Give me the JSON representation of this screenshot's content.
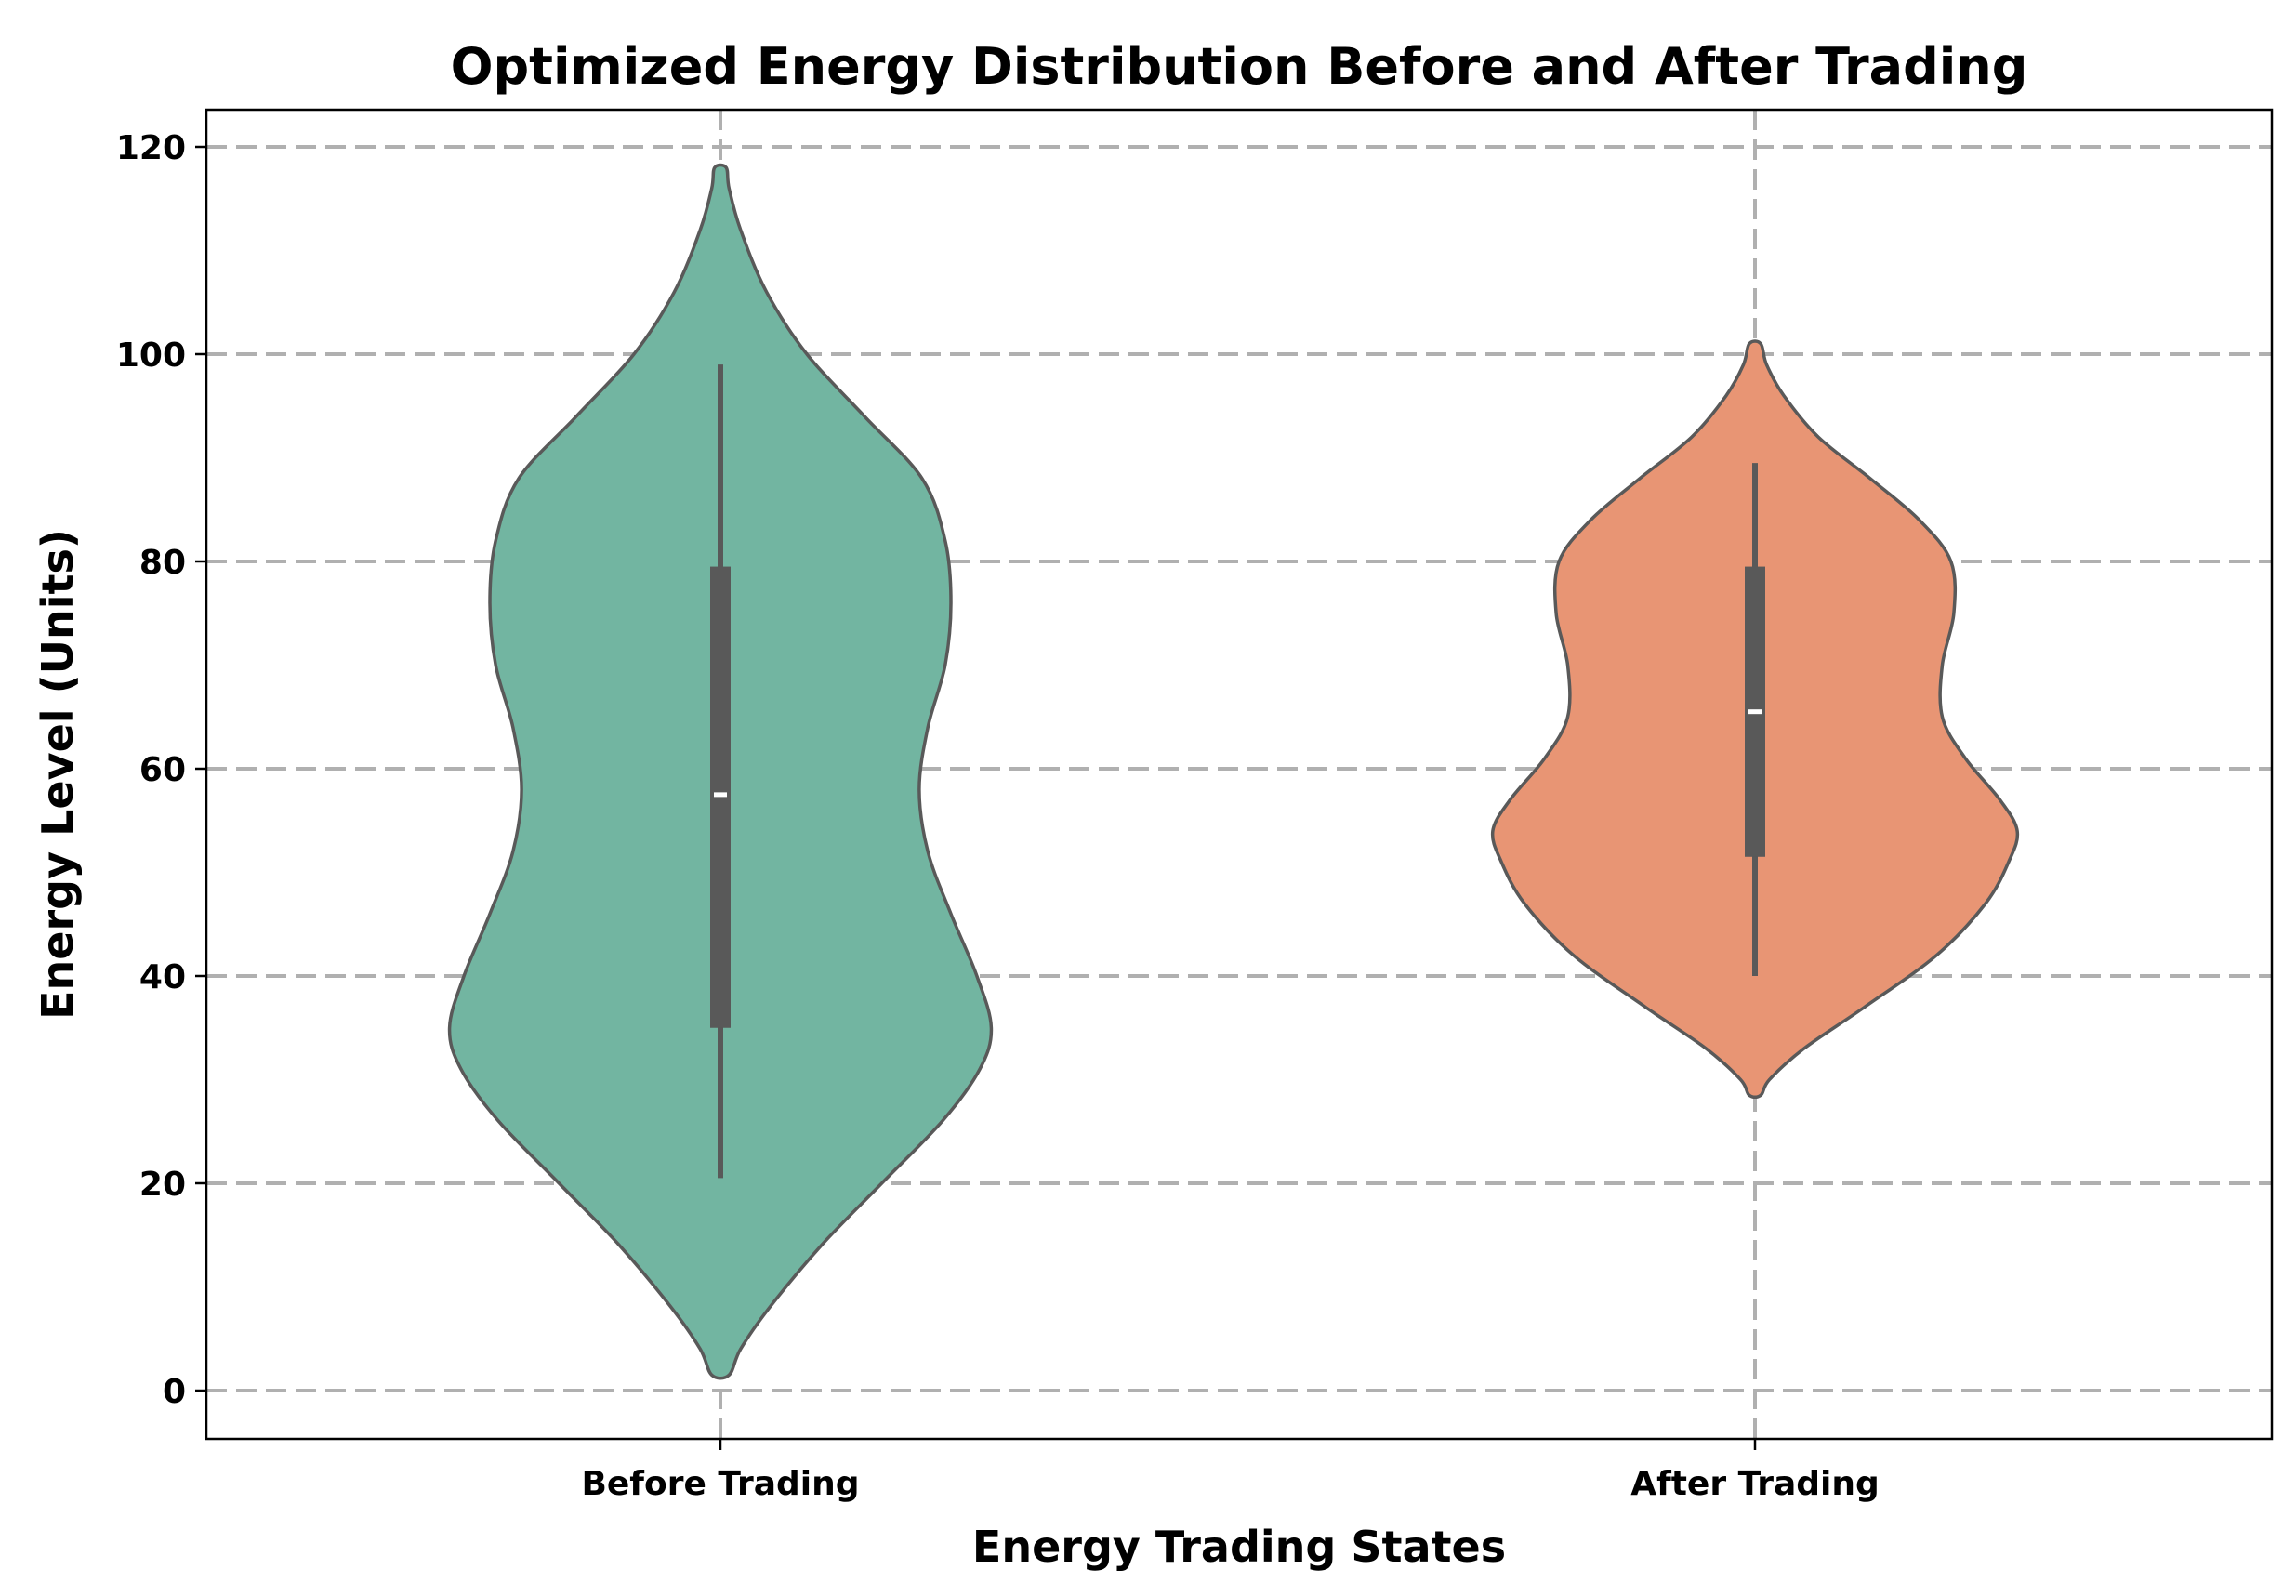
{
  "chart_data": {
    "type": "violin",
    "title": "Optimized Energy Distribution Before and After Trading",
    "xlabel": "Energy Trading States",
    "ylabel": "Energy Level (Units)",
    "categories": [
      "Before Trading",
      "After Trading"
    ],
    "ylim": [
      -5,
      124
    ],
    "yticks": [
      0,
      20,
      40,
      60,
      80,
      100,
      120
    ],
    "grid": true,
    "series": [
      {
        "name": "Before Trading",
        "color": "#72b5a1",
        "min": 1.5,
        "max": 118,
        "whisker_low": 20.5,
        "whisker_high": 99,
        "q1": 35,
        "median": 57.5,
        "q3": 79.5,
        "density": [
          {
            "y": 1.5,
            "w": 0.03
          },
          {
            "y": 4,
            "w": 0.07
          },
          {
            "y": 8,
            "w": 0.17
          },
          {
            "y": 14,
            "w": 0.35
          },
          {
            "y": 20,
            "w": 0.56
          },
          {
            "y": 26,
            "w": 0.77
          },
          {
            "y": 31,
            "w": 0.9
          },
          {
            "y": 35,
            "w": 0.94
          },
          {
            "y": 40,
            "w": 0.89
          },
          {
            "y": 46,
            "w": 0.8
          },
          {
            "y": 52,
            "w": 0.72
          },
          {
            "y": 58,
            "w": 0.69
          },
          {
            "y": 64,
            "w": 0.72
          },
          {
            "y": 70,
            "w": 0.78
          },
          {
            "y": 76,
            "w": 0.8
          },
          {
            "y": 82,
            "w": 0.78
          },
          {
            "y": 88,
            "w": 0.7
          },
          {
            "y": 94,
            "w": 0.5
          },
          {
            "y": 100,
            "w": 0.3
          },
          {
            "y": 106,
            "w": 0.16
          },
          {
            "y": 112,
            "w": 0.07
          },
          {
            "y": 116,
            "w": 0.03
          },
          {
            "y": 118,
            "w": 0.02
          }
        ]
      },
      {
        "name": "After Trading",
        "color": "#e89574",
        "min": 28.5,
        "max": 101,
        "whisker_low": 40,
        "whisker_high": 89.5,
        "q1": 51.5,
        "median": 65.5,
        "q3": 79.5,
        "density": [
          {
            "y": 28.5,
            "w": 0.02
          },
          {
            "y": 30,
            "w": 0.05
          },
          {
            "y": 33,
            "w": 0.17
          },
          {
            "y": 37,
            "w": 0.38
          },
          {
            "y": 42,
            "w": 0.63
          },
          {
            "y": 47,
            "w": 0.8
          },
          {
            "y": 51,
            "w": 0.88
          },
          {
            "y": 54,
            "w": 0.91
          },
          {
            "y": 57,
            "w": 0.85
          },
          {
            "y": 61,
            "w": 0.73
          },
          {
            "y": 65,
            "w": 0.65
          },
          {
            "y": 70,
            "w": 0.65
          },
          {
            "y": 75,
            "w": 0.69
          },
          {
            "y": 80,
            "w": 0.68
          },
          {
            "y": 84,
            "w": 0.57
          },
          {
            "y": 88,
            "w": 0.4
          },
          {
            "y": 92,
            "w": 0.22
          },
          {
            "y": 96,
            "w": 0.1
          },
          {
            "y": 99,
            "w": 0.04
          },
          {
            "y": 101,
            "w": 0.02
          }
        ]
      }
    ]
  }
}
